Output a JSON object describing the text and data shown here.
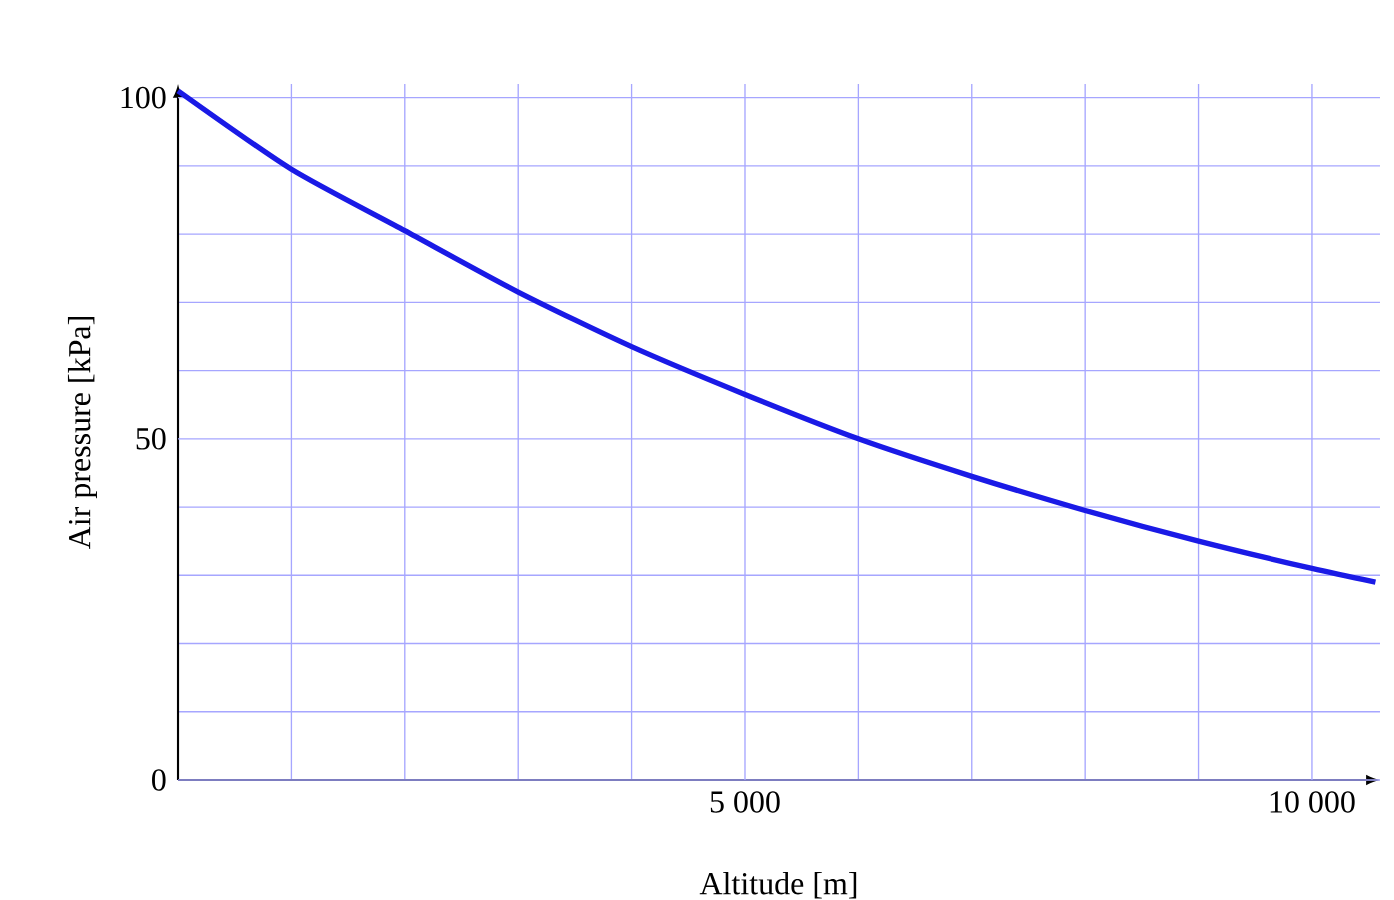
{
  "chart_data": {
    "type": "line",
    "xlabel": "Altitude [m]",
    "ylabel": "Air pressure [kPa]",
    "x": [
      0,
      1000,
      2000,
      3000,
      4000,
      5000,
      6000,
      7000,
      8000,
      9000,
      10000,
      10560
    ],
    "series": [
      {
        "color": "#1a1ae6",
        "values": [
          101,
          89.5,
          80.5,
          71.5,
          63.5,
          56.5,
          50,
          44.5,
          39.5,
          35,
          31,
          29
        ]
      }
    ],
    "xlim": [
      0,
      10600
    ],
    "ylim": [
      0,
      102
    ],
    "xticks": [
      {
        "value": 1000,
        "label": null
      },
      {
        "value": 2000,
        "label": null
      },
      {
        "value": 3000,
        "label": null
      },
      {
        "value": 4000,
        "label": null
      },
      {
        "value": 5000,
        "label": "5 000"
      },
      {
        "value": 6000,
        "label": null
      },
      {
        "value": 7000,
        "label": null
      },
      {
        "value": 8000,
        "label": null
      },
      {
        "value": 9000,
        "label": null
      },
      {
        "value": 10000,
        "label": "10 000"
      }
    ],
    "yticks": [
      0,
      {
        "value": 10,
        "label": null
      },
      {
        "value": 20,
        "label": null
      },
      {
        "value": 30,
        "label": null
      },
      {
        "value": 40,
        "label": null
      },
      50,
      {
        "value": 60,
        "label": null
      },
      {
        "value": 70,
        "label": null
      },
      {
        "value": 80,
        "label": null
      },
      {
        "value": 90,
        "label": null
      },
      100
    ],
    "grid": true,
    "marker": "none",
    "line_style": "solid"
  }
}
